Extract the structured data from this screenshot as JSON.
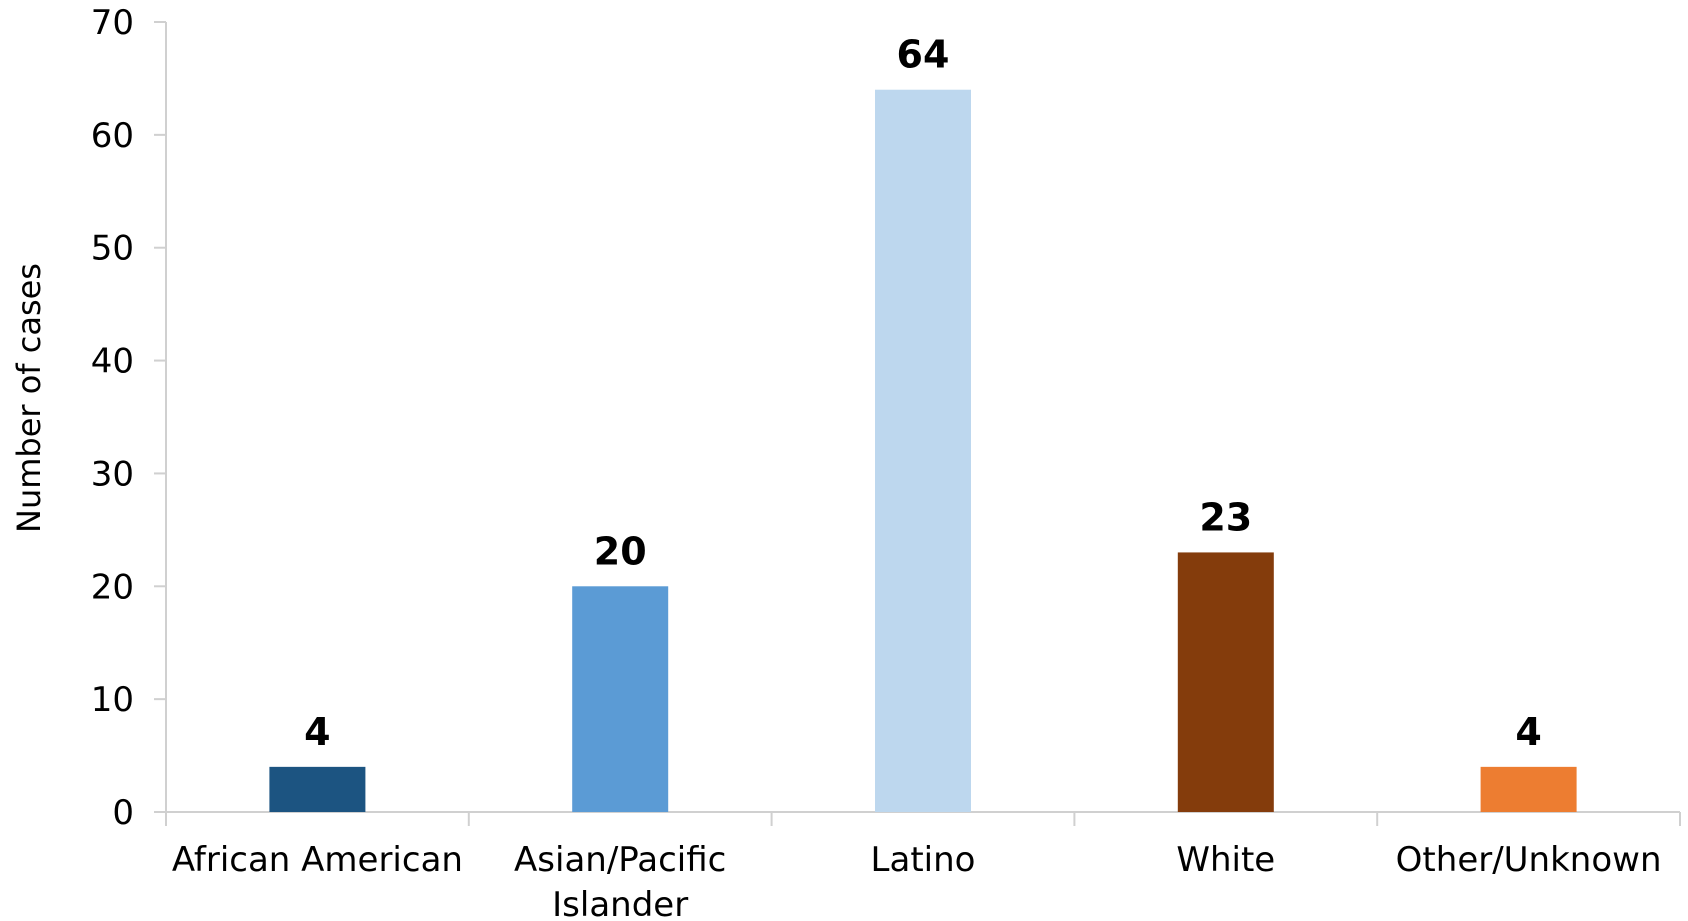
{
  "chart_data": {
    "type": "bar",
    "categories": [
      [
        "African American"
      ],
      [
        "Asian/Pacific",
        "Islander"
      ],
      [
        "Latino"
      ],
      [
        "White"
      ],
      [
        "Other/Unknown"
      ]
    ],
    "values": [
      4,
      20,
      64,
      23,
      4
    ],
    "data_labels": [
      "4",
      "20",
      "64",
      "23",
      "4"
    ],
    "colors": [
      "#1c5481",
      "#5b9bd5",
      "#bdd7ee",
      "#843c0c",
      "#ed7d31"
    ],
    "title": "",
    "xlabel": "",
    "ylabel": "Number of cases",
    "ylim": [
      0,
      70
    ],
    "yticks": [
      0,
      10,
      20,
      30,
      40,
      50,
      60,
      70
    ],
    "grid": false,
    "legend": "none"
  }
}
